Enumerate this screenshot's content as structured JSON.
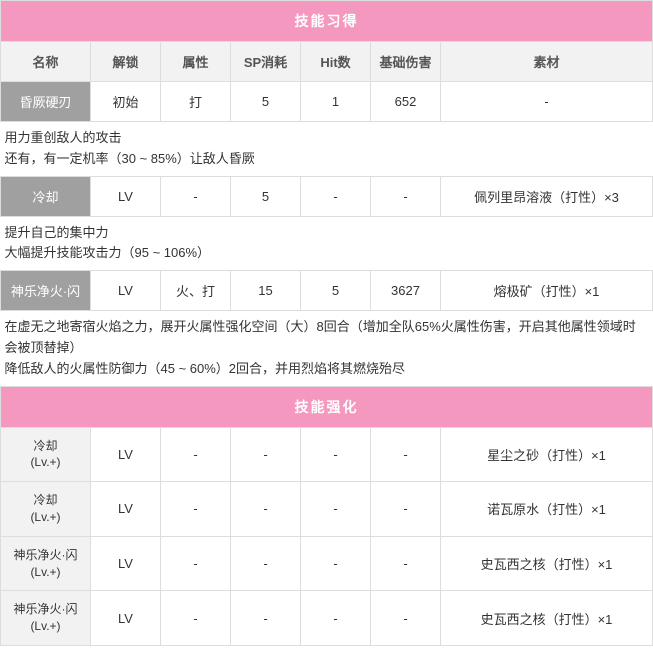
{
  "section_learn_title": "技能习得",
  "section_enhance_title": "技能强化",
  "headers": {
    "name": "名称",
    "unlock": "解锁",
    "attribute": "属性",
    "sp": "SP消耗",
    "hit": "Hit数",
    "base_dmg": "基础伤害",
    "material": "素材"
  },
  "learn": [
    {
      "name": "昏厥硬刃",
      "unlock": "初始",
      "attribute": "打",
      "sp": "5",
      "hit": "1",
      "base_dmg": "652",
      "material": "-",
      "desc": "用力重创敌人的攻击\n还有，有一定机率（30 ~ 85%）让敌人昏厥"
    },
    {
      "name": "冷却",
      "unlock": "LV",
      "attribute": "-",
      "sp": "5",
      "hit": "-",
      "base_dmg": "-",
      "material": "佩列里昂溶液（打性）×3",
      "desc": "提升自己的集中力\n大幅提升技能攻击力（95 ~ 106%）"
    },
    {
      "name": "神乐净火·闪",
      "unlock": "LV",
      "attribute": "火、打",
      "sp": "15",
      "hit": "5",
      "base_dmg": "3627",
      "material": "熔极矿（打性）×1",
      "desc": "在虚无之地寄宿火焰之力，展开火属性强化空间（大）8回合（增加全队65%火属性伤害，开启其他属性领域时会被顶替掉）\n降低敌人的火属性防御力（45 ~ 60%）2回合，并用烈焰将其燃烧殆尽"
    }
  ],
  "enhance": [
    {
      "name_line1": "冷却",
      "name_line2": "(Lv.+)",
      "unlock": "LV",
      "attribute": "-",
      "sp": "-",
      "hit": "-",
      "base_dmg": "-",
      "material": "星尘之砂（打性）×1"
    },
    {
      "name_line1": "冷却",
      "name_line2": "(Lv.+)",
      "unlock": "LV",
      "attribute": "-",
      "sp": "-",
      "hit": "-",
      "base_dmg": "-",
      "material": "诺瓦原水（打性）×1"
    },
    {
      "name_line1": "神乐净火·闪",
      "name_line2": "(Lv.+)",
      "unlock": "LV",
      "attribute": "-",
      "sp": "-",
      "hit": "-",
      "base_dmg": "-",
      "material": "史瓦西之核（打性）×1"
    },
    {
      "name_line1": "神乐净火·闪",
      "name_line2": "(Lv.+)",
      "unlock": "LV",
      "attribute": "-",
      "sp": "-",
      "hit": "-",
      "base_dmg": "-",
      "material": "史瓦西之核（打性）×1"
    }
  ],
  "colors": {
    "section_title_bg": "#f498bf",
    "section_title_fg": "#ffffff",
    "header_bg": "#f2f2f2",
    "skill_label_bg": "#a0a0a0",
    "skill_label_fg": "#ffffff",
    "border": "#dddddd",
    "text": "#333333"
  }
}
